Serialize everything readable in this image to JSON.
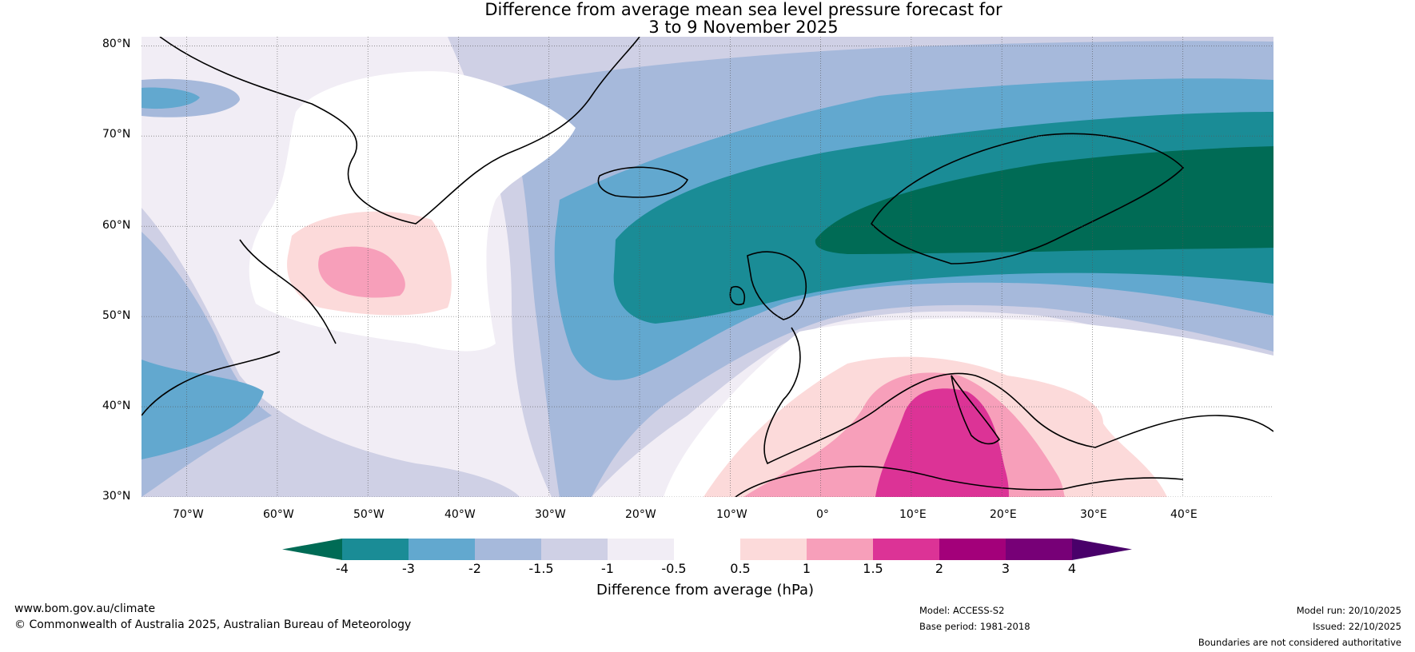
{
  "title": {
    "line1": "Difference from average mean sea level pressure forecast for",
    "line2": "3 to 9 November 2025"
  },
  "map": {
    "lat_ticks": [
      "80°N",
      "70°N",
      "60°N",
      "50°N",
      "40°N",
      "30°N"
    ],
    "lon_ticks": [
      "70°W",
      "60°W",
      "50°W",
      "40°W",
      "30°W",
      "20°W",
      "10°W",
      "0°",
      "10°E",
      "20°E",
      "30°E",
      "40°E"
    ],
    "extent": {
      "lon_min": -75,
      "lon_max": 50,
      "lat_min": 30,
      "lat_max": 81
    }
  },
  "colorbar": {
    "title": "Difference from average (hPa)",
    "tick_labels": [
      "-4",
      "-3",
      "-2",
      "-1.5",
      "-1",
      "-0.5",
      "0.5",
      "1",
      "1.5",
      "2",
      "3",
      "4"
    ],
    "colors": [
      "#006b55",
      "#1a8c96",
      "#62a8cf",
      "#a6b9db",
      "#cfd0e5",
      "#f1edf5",
      "#ffffff",
      "#fcdada",
      "#f79fba",
      "#dc3396",
      "#a3007a",
      "#770077",
      "#49006a"
    ]
  },
  "footer": {
    "url": "www.bom.gov.au/climate",
    "copyright": "© Commonwealth of Australia 2025, Australian Bureau of Meteorology",
    "model": "Model: ACCESS-S2",
    "base_period": "Base period: 1981-2018",
    "model_run": "Model run: 20/10/2025",
    "issued": "Issued: 22/10/2025",
    "disclaimer": "Boundaries are not considered authoritative"
  }
}
